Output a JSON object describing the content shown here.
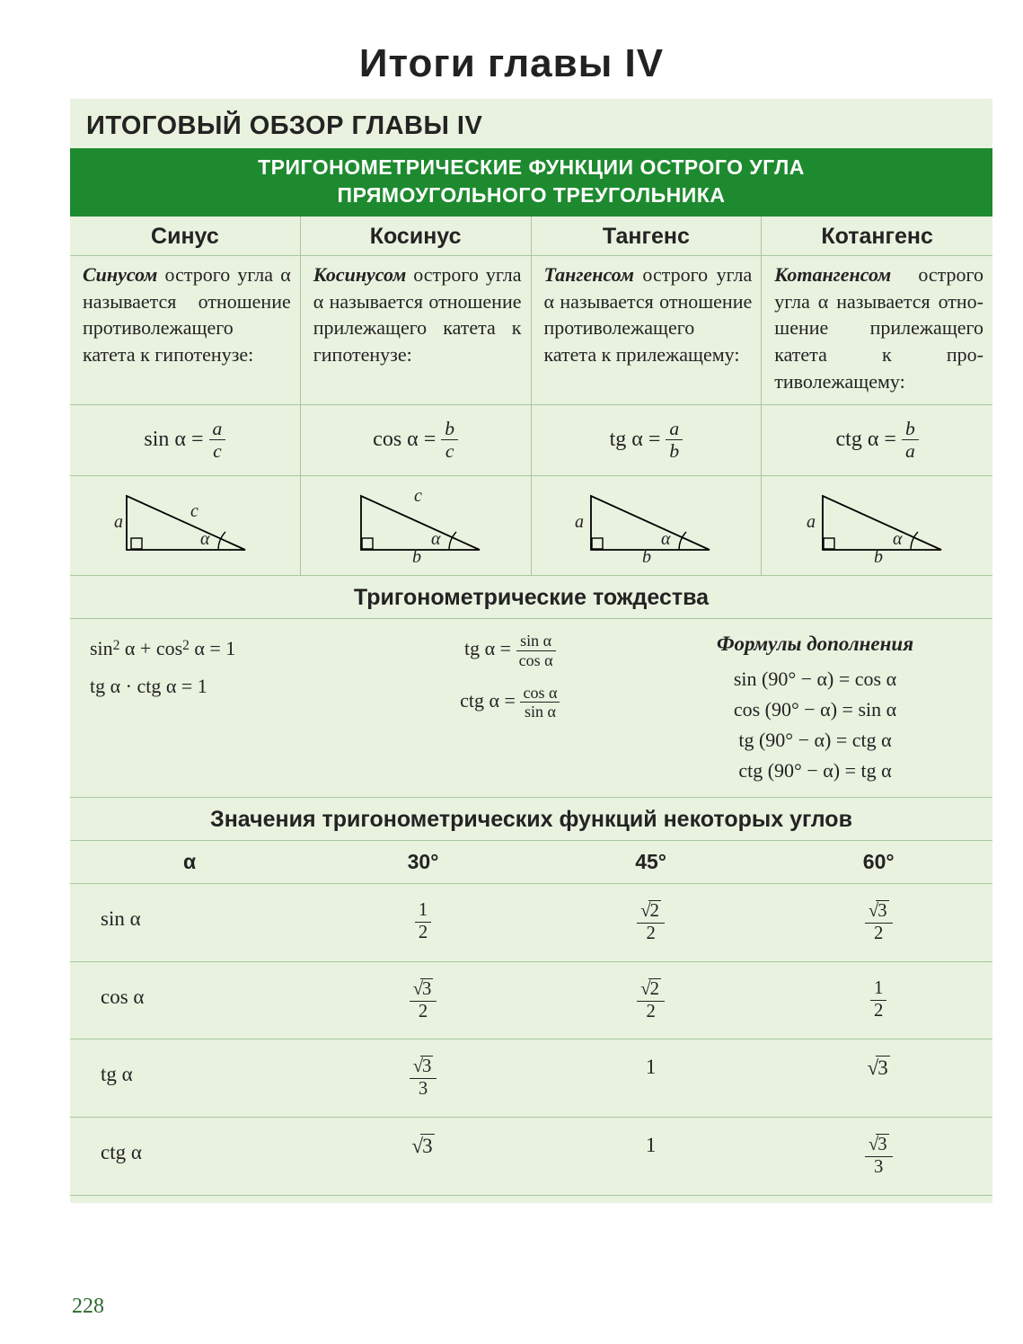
{
  "colors": {
    "page_bg": "#ffffff",
    "panel_bg": "#e8f2df",
    "banner_bg": "#1e8a2f",
    "banner_fg": "#ffffff",
    "rule": "#a9c79e",
    "text": "#232323",
    "pagenum": "#2e6a2e",
    "tri_stroke": "#000000"
  },
  "typography": {
    "title_fontsize": 44,
    "subtitle_fontsize": 29,
    "banner_fontsize": 23,
    "colhead_fontsize": 25,
    "body_fontsize": 22,
    "section_fontsize": 25,
    "value_fontsize": 23,
    "title_family": "Verdana,Arial,sans-serif",
    "body_family": "Georgia,'Times New Roman',serif"
  },
  "page_number": "228",
  "title": "Итоги  главы  IV",
  "subtitle": "ИТОГОВЫЙ  ОБЗОР  ГЛАВЫ  IV",
  "banner_line1": "ТРИГОНОМЕТРИЧЕСКИЕ  ФУНКЦИИ  ОСТРОГО  УГЛА",
  "banner_line2": "ПРЯМОУГОЛЬНОГО  ТРЕУГОЛЬНИКА",
  "functions": {
    "columns": [
      {
        "head": "Синус",
        "lead": "Синусом",
        "body": "острого угла α называется отно­шение противо­лежащего катета к гипотенузе:",
        "lhs": "sin α =",
        "num": "a",
        "den": "c",
        "tri": {
          "orient": "right",
          "labels": {
            "left": "a",
            "hyp": "c",
            "angle": "α"
          }
        }
      },
      {
        "head": "Косинус",
        "lead": "Косинусом",
        "body": "острого угла α называется отно­шение прилежа­щего катета к ги­потенузе:",
        "lhs": "cos α =",
        "num": "b",
        "den": "c",
        "tri": {
          "orient": "left",
          "labels": {
            "hyp": "c",
            "base": "b",
            "angle": "α"
          }
        }
      },
      {
        "head": "Тангенс",
        "lead": "Тангенсом",
        "body": "острого угла α называется отно­шение противо­лежащего катета к прилежащему:",
        "lhs": "tg α =",
        "num": "a",
        "den": "b",
        "tri": {
          "orient": "left",
          "labels": {
            "left": "a",
            "base": "b",
            "angle": "α"
          }
        }
      },
      {
        "head": "Котангенс",
        "lead": "Котангенсом",
        "body": "острого угла α называется отно­шение прилежа­щего катета к про­тиволежащему:",
        "lhs": "ctg α =",
        "num": "b",
        "den": "a",
        "tri": {
          "orient": "left",
          "labels": {
            "left": "a",
            "base": "b",
            "angle": "α"
          }
        }
      }
    ]
  },
  "identities_title": "Тригонометрические  тождества",
  "identities": {
    "col1": [
      "sin² α + cos² α = 1",
      "tg α · ctg α = 1"
    ],
    "col2": [
      {
        "lhs": "tg α =",
        "num": "sin α",
        "den": "cos α"
      },
      {
        "lhs": "ctg α =",
        "num": "cos α",
        "den": "sin α"
      }
    ],
    "col3_title": "Формулы  дополнения",
    "col3": [
      "sin (90° − α) = cos α",
      "cos (90° − α) = sin α",
      "tg (90° − α) = ctg α",
      "ctg (90° − α) = tg α"
    ]
  },
  "values_title": "Значения  тригонометрических  функций  некоторых  углов",
  "values": {
    "angles": [
      "30°",
      "45°",
      "60°"
    ],
    "alpha_label": "α",
    "rows": [
      {
        "label": "sin α",
        "cells": [
          {
            "type": "frac",
            "num": "1",
            "den": "2"
          },
          {
            "type": "frac",
            "num_sqrt": "2",
            "den": "2"
          },
          {
            "type": "frac",
            "num_sqrt": "3",
            "den": "2"
          }
        ]
      },
      {
        "label": "cos α",
        "cells": [
          {
            "type": "frac",
            "num_sqrt": "3",
            "den": "2"
          },
          {
            "type": "frac",
            "num_sqrt": "2",
            "den": "2"
          },
          {
            "type": "frac",
            "num": "1",
            "den": "2"
          }
        ]
      },
      {
        "label": "tg α",
        "cells": [
          {
            "type": "frac",
            "num_sqrt": "3",
            "den": "3"
          },
          {
            "type": "plain",
            "val": "1"
          },
          {
            "type": "sqrt",
            "val": "3"
          }
        ]
      },
      {
        "label": "ctg α",
        "cells": [
          {
            "type": "sqrt",
            "val": "3"
          },
          {
            "type": "plain",
            "val": "1"
          },
          {
            "type": "frac",
            "num_sqrt": "3",
            "den": "3"
          }
        ]
      }
    ]
  }
}
